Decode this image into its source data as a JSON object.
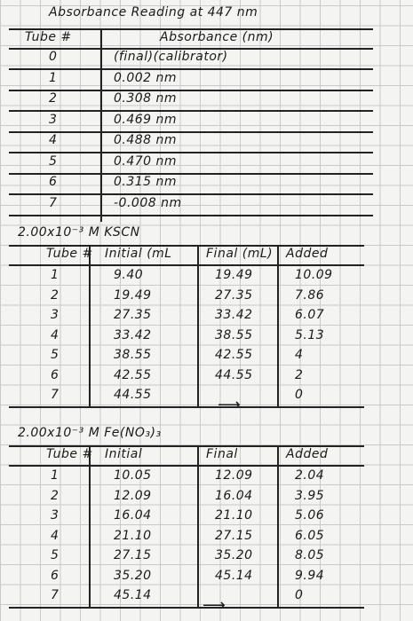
{
  "absorbance": {
    "title": "Absorbance Reading at 447 nm",
    "headers": [
      "Tube #",
      "Absorbance (nm)"
    ],
    "rows": [
      [
        "0",
        "(final)(calibrator)"
      ],
      [
        "1",
        "0.002 nm"
      ],
      [
        "2",
        "0.308 nm"
      ],
      [
        "3",
        "0.469 nm"
      ],
      [
        "4",
        "0.488 nm"
      ],
      [
        "5",
        "0.470 nm"
      ],
      [
        "6",
        "0.315 nm"
      ],
      [
        "7",
        "-0.008 nm"
      ]
    ]
  },
  "kscn": {
    "title": "2.00x10⁻³ M KSCN",
    "headers": {
      "tube": "Tube #",
      "initial": "Initial (mL",
      "final": "Final (mL)",
      "added": "Added"
    },
    "rows": [
      {
        "tube": "1",
        "initial": "9.40",
        "final": "19.49",
        "added": "10.09"
      },
      {
        "tube": "2",
        "initial": "19.49",
        "final": "27.35",
        "added": "7.86"
      },
      {
        "tube": "3",
        "initial": "27.35",
        "final": "33.42",
        "added": "6.07"
      },
      {
        "tube": "4",
        "initial": "33.42",
        "final": "38.55",
        "added": "5.13"
      },
      {
        "tube": "5",
        "initial": "38.55",
        "final": "42.55",
        "added": "4"
      },
      {
        "tube": "6",
        "initial": "42.55",
        "final": "44.55",
        "added": "2"
      },
      {
        "tube": "7",
        "initial": "44.55",
        "added": "0"
      }
    ]
  },
  "fe": {
    "title": "2.00x10⁻³ M Fe(NO₃)₃",
    "headers": {
      "tube": "Tube #",
      "initial": "Initial",
      "final": "Final",
      "added": "Added"
    },
    "rows": [
      {
        "tube": "1",
        "initial": "10.05",
        "final": "12.09",
        "added": "2.04"
      },
      {
        "tube": "2",
        "initial": "12.09",
        "final": "16.04",
        "added": "3.95"
      },
      {
        "tube": "3",
        "initial": "16.04",
        "final": "21.10",
        "added": "5.06"
      },
      {
        "tube": "4",
        "initial": "21.10",
        "final": "27.15",
        "added": "6.05"
      },
      {
        "tube": "5",
        "initial": "27.15",
        "final": "35.20",
        "added": "8.05"
      },
      {
        "tube": "6",
        "initial": "35.20",
        "final": "45.14",
        "added": "9.94"
      },
      {
        "tube": "7",
        "initial": "45.14",
        "added": "0"
      }
    ]
  }
}
